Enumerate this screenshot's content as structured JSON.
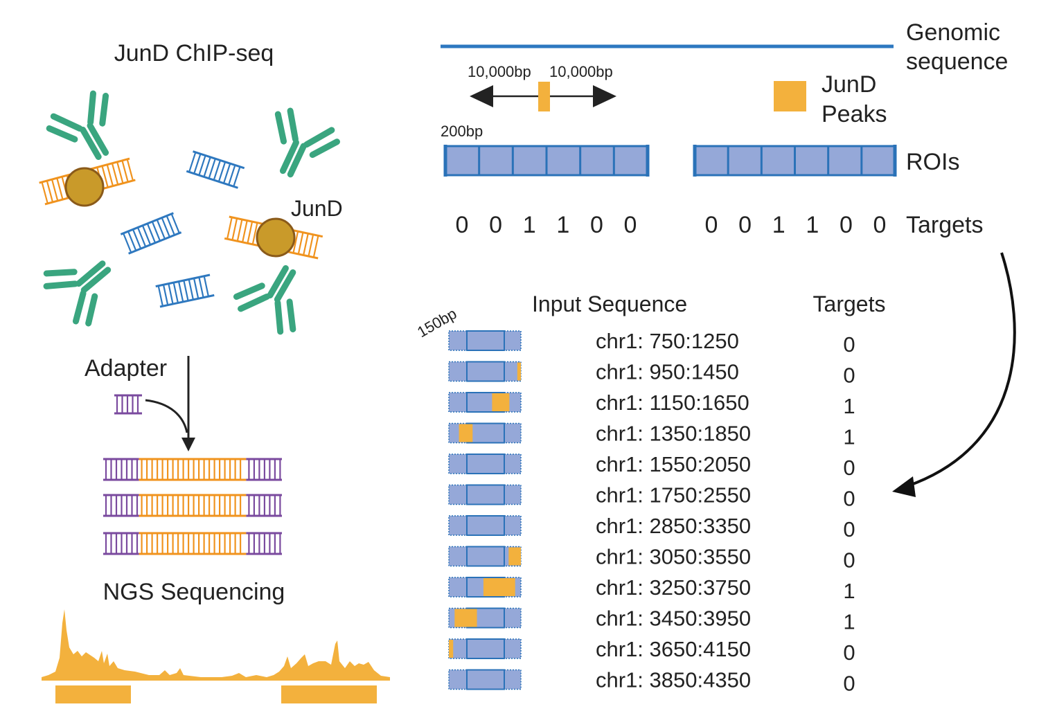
{
  "colors": {
    "green": "#3aa57f",
    "blue_dna": "#2e78bf",
    "orange": "#f0931e",
    "protein": "#c99a2a",
    "purple": "#7a4a9e",
    "roi_fill": "#95a8d8",
    "roi_border": "#2a72b8",
    "peak": "#f3b13d",
    "genomic_line": "#2d78c0"
  },
  "left": {
    "title": "JunD ChIP-seq",
    "jund_label": "JunD",
    "adapter_label": "Adapter",
    "ngs_label": "NGS Sequencing"
  },
  "right": {
    "genomic_label_1": "Genomic",
    "genomic_label_2": "sequence",
    "bp_left": "10,000bp",
    "bp_right": "10,000bp",
    "peaks_label_1": "JunD",
    "peaks_label_2": "Peaks",
    "roi_bp": "200bp",
    "rois_label": "ROIs",
    "targets_label": "Targets",
    "targets_left": [
      "0",
      "0",
      "1",
      "1",
      "0",
      "0"
    ],
    "targets_right": [
      "0",
      "0",
      "1",
      "1",
      "0",
      "0"
    ]
  },
  "table": {
    "bp_label": "150bp",
    "col_input": "Input Sequence",
    "col_targets": "Targets",
    "rows": [
      {
        "seq": "chr1: 750:1250",
        "target": "0",
        "peak_start": 0,
        "peak_end": 0
      },
      {
        "seq": "chr1: 950:1450",
        "target": "0",
        "peak_start": 0.95,
        "peak_end": 1.0
      },
      {
        "seq": "chr1: 1150:1650",
        "target": "1",
        "peak_start": 0.6,
        "peak_end": 0.84
      },
      {
        "seq": "chr1: 1350:1850",
        "target": "1",
        "peak_start": 0.14,
        "peak_end": 0.33
      },
      {
        "seq": "chr1: 1550:2050",
        "target": "0",
        "peak_start": 0,
        "peak_end": 0
      },
      {
        "seq": "chr1: 1750:2550",
        "target": "0",
        "peak_start": 0,
        "peak_end": 0
      },
      {
        "seq": "chr1: 2850:3350",
        "target": "0",
        "peak_start": 0,
        "peak_end": 0
      },
      {
        "seq": "chr1: 3050:3550",
        "target": "0",
        "peak_start": 0.83,
        "peak_end": 1.0
      },
      {
        "seq": "chr1: 3250:3750",
        "target": "1",
        "peak_start": 0.48,
        "peak_end": 0.92
      },
      {
        "seq": "chr1: 3450:3950",
        "target": "1",
        "peak_start": 0.08,
        "peak_end": 0.39
      },
      {
        "seq": "chr1: 3650:4150",
        "target": "0",
        "peak_start": 0,
        "peak_end": 0.06
      },
      {
        "seq": "chr1: 3850:4350",
        "target": "0",
        "peak_start": 0,
        "peak_end": 0
      }
    ]
  }
}
